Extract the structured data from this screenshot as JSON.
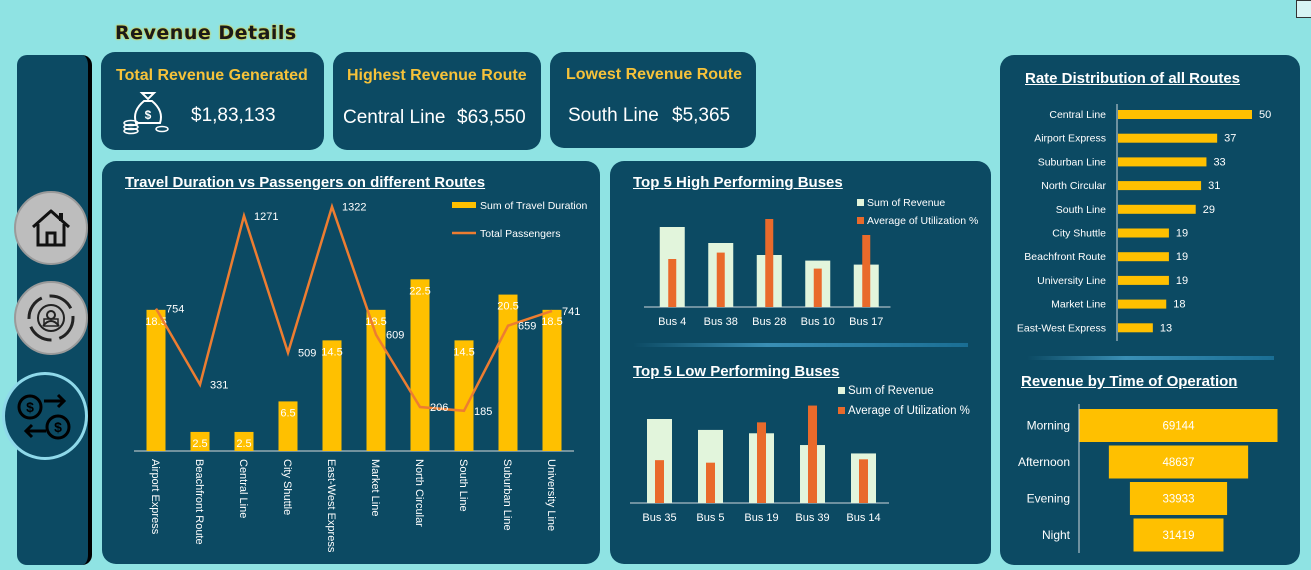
{
  "page_title": "Revenue Details",
  "kpis": {
    "total": {
      "title": "Total Revenue Generated",
      "value": "$1,83,133",
      "icon": "money-bag-icon"
    },
    "highest": {
      "title": "Highest Revenue Route",
      "route": "Central Line",
      "value": "$63,550"
    },
    "lowest": {
      "title": "Lowest Revenue Route",
      "route": "South Line",
      "value": "$5,365"
    }
  },
  "sidebar": {
    "items": [
      {
        "icon": "home-icon"
      },
      {
        "icon": "route-cycle-icon"
      },
      {
        "icon": "money-exchange-icon"
      }
    ]
  },
  "chart_data": [
    {
      "type": "bar",
      "title": "Travel Duration vs Passengers on different Routes",
      "categories": [
        "Airport Express",
        "Beachfront Route",
        "Central Line",
        "City Shuttle",
        "East-West Express",
        "Market Line",
        "North Circular",
        "South Line",
        "Suburban Line",
        "University Line"
      ],
      "series": [
        {
          "name": "Sum of Travel Duration",
          "type": "bar",
          "color": "#ffc000",
          "values": [
            18.5,
            2.5,
            2.5,
            6.5,
            14.5,
            18.5,
            22.5,
            14.5,
            20.5,
            18.5
          ]
        },
        {
          "name": "Total Passengers",
          "type": "line",
          "color": "#ed7d31",
          "values": [
            754,
            331,
            1271,
            509,
            1322,
            609,
            206,
            185,
            659,
            741
          ]
        }
      ],
      "legend": "top-right"
    },
    {
      "type": "bar",
      "title": "Top 5 High Performing Buses",
      "categories": [
        "Bus 4",
        "Bus 38",
        "Bus 28",
        "Bus 10",
        "Bus 17"
      ],
      "series": [
        {
          "name": "Sum of Revenue",
          "color": "#e2f5dc",
          "values": [
            100,
            80,
            65,
            58,
            53
          ]
        },
        {
          "name": "Average of Utilization %",
          "color": "#e96a2b",
          "values": [
            60,
            68,
            110,
            48,
            90
          ]
        }
      ],
      "legend": "top-right"
    },
    {
      "type": "bar",
      "title": "Top 5 Low Performing Buses",
      "categories": [
        "Bus 35",
        "Bus 5",
        "Bus 19",
        "Bus 39",
        "Bus 14"
      ],
      "series": [
        {
          "name": "Sum of Revenue",
          "color": "#e2f5dc",
          "values": [
            100,
            87,
            83,
            69,
            59
          ]
        },
        {
          "name": "Average of Utilization %",
          "color": "#e96a2b",
          "values": [
            51,
            48,
            96,
            116,
            52
          ]
        }
      ],
      "legend": "top-right"
    },
    {
      "type": "bar",
      "orientation": "horizontal",
      "title": "Rate Distribution of all Routes",
      "categories": [
        "Central Line",
        "Airport Express",
        "Suburban Line",
        "North Circular",
        "South Line",
        "City Shuttle",
        "Beachfront Route",
        "University Line",
        "Market Line",
        "East-West Express"
      ],
      "values": [
        50,
        37,
        33,
        31,
        29,
        19,
        19,
        19,
        18,
        13
      ],
      "color": "#ffc000"
    },
    {
      "type": "bar",
      "orientation": "funnel",
      "title": "Revenue by Time of Operation",
      "categories": [
        "Morning",
        "Afternoon",
        "Evening",
        "Night"
      ],
      "values": [
        69144,
        48637,
        33933,
        31419
      ],
      "color": "#ffc000"
    }
  ]
}
